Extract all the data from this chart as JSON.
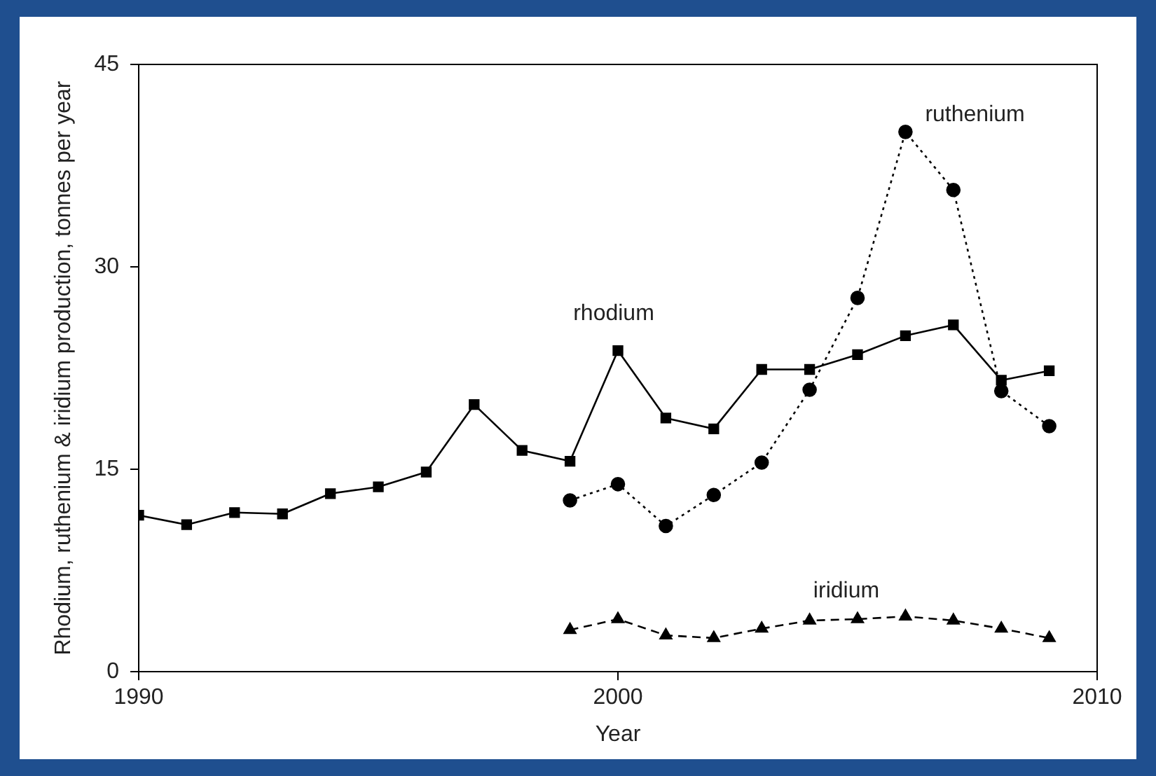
{
  "chart_data": {
    "type": "line",
    "xlabel": "Year",
    "ylabel": "Rhodium, ruthenium & iridium production, tonnes per year",
    "xlim": [
      1990,
      2010
    ],
    "xticks": [
      1990,
      2000,
      2010
    ],
    "ylim": [
      0,
      45
    ],
    "yticks": [
      0,
      15,
      30,
      45
    ],
    "grid": false,
    "legend": false,
    "series": [
      {
        "name": "rhodium",
        "color": "#000000",
        "marker": "square",
        "line_style": "solid",
        "x": [
          1990,
          1991,
          1992,
          1993,
          1994,
          1995,
          1996,
          1997,
          1998,
          1999,
          2000,
          2001,
          2002,
          2003,
          2004,
          2005,
          2006,
          2007,
          2008,
          2009
        ],
        "values": [
          11.6,
          10.9,
          11.8,
          11.7,
          13.2,
          13.7,
          14.8,
          19.8,
          16.4,
          15.6,
          23.8,
          18.8,
          18.0,
          22.4,
          22.4,
          23.5,
          24.9,
          25.7,
          21.6,
          22.3
        ]
      },
      {
        "name": "ruthenium",
        "color": "#000000",
        "marker": "circle",
        "line_style": "dotted",
        "x": [
          1999,
          2000,
          2001,
          2002,
          2003,
          2004,
          2005,
          2006,
          2007,
          2008,
          2009
        ],
        "values": [
          12.7,
          13.9,
          10.8,
          13.1,
          15.5,
          20.9,
          27.7,
          40.0,
          35.7,
          20.8,
          18.2
        ]
      },
      {
        "name": "iridium",
        "color": "#000000",
        "marker": "triangle",
        "line_style": "dashed",
        "x": [
          1999,
          2000,
          2001,
          2002,
          2003,
          2004,
          2005,
          2006,
          2007,
          2008,
          2009
        ],
        "values": [
          3.1,
          3.9,
          2.7,
          2.5,
          3.2,
          3.8,
          3.9,
          4.1,
          3.8,
          3.2,
          2.5
        ]
      }
    ]
  }
}
